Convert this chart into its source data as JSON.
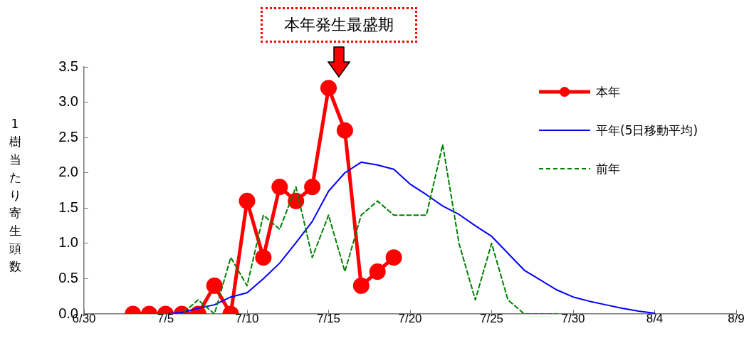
{
  "chart_data": {
    "type": "line",
    "ylabel": "1樹当たり寄生頭数",
    "annotations": [
      "本年発生最盛期"
    ],
    "xlim": [
      "--06-30",
      "--08-09"
    ],
    "xticks": [
      {
        "value": "--06-30",
        "label": "6/30"
      },
      {
        "value": "--07-05",
        "label": "7/5"
      },
      {
        "value": "--07-10",
        "label": "7/10"
      },
      {
        "value": "--07-15",
        "label": "7/15"
      },
      {
        "value": "--07-20",
        "label": "7/20"
      },
      {
        "value": "--07-25",
        "label": "7/25"
      },
      {
        "value": "--07-30",
        "label": "7/30"
      },
      {
        "value": "--08-04",
        "label": "8/4"
      },
      {
        "value": "--08-09",
        "label": "8/9"
      }
    ],
    "ylim": [
      0,
      3.5
    ],
    "yticks": [
      {
        "value": 0,
        "label": "0.0"
      },
      {
        "value": 0.5,
        "label": "0.5"
      },
      {
        "value": 1,
        "label": "1.0"
      },
      {
        "value": 1.5,
        "label": "1.5"
      },
      {
        "value": 2,
        "label": "2.0"
      },
      {
        "value": 2.5,
        "label": "2.5"
      },
      {
        "value": 3,
        "label": "3.0"
      },
      {
        "value": 3.5,
        "label": "3.5"
      }
    ],
    "grid": false,
    "legend": "top right",
    "series": [
      {
        "name": "本年",
        "color": "#ff0000",
        "marker": "circle",
        "line_style": "solid",
        "x": [
          "--07-03",
          "--07-04",
          "--07-05",
          "--07-06",
          "--07-07",
          "--07-08",
          "--07-09",
          "--07-10",
          "--07-11",
          "--07-12",
          "--07-13",
          "--07-14",
          "--07-15",
          "--07-16",
          "--07-17",
          "--07-18",
          "--07-19"
        ],
        "values": [
          0,
          0,
          0,
          0,
          0,
          0.4,
          0,
          1.6,
          0.8,
          1.8,
          1.6,
          1.8,
          3.2,
          2.6,
          0.4,
          0.6,
          0.8
        ]
      },
      {
        "name": "平年(5日移動平均)",
        "color": "#0000ff",
        "marker": "none",
        "line_style": "solid",
        "x": [
          "--07-05",
          "--07-06",
          "--07-07",
          "--07-08",
          "--07-09",
          "--07-10",
          "--07-11",
          "--07-12",
          "--07-13",
          "--07-14",
          "--07-15",
          "--07-16",
          "--07-17",
          "--07-18",
          "--07-19",
          "--07-20",
          "--07-21",
          "--07-22",
          "--07-23",
          "--07-24",
          "--07-25",
          "--07-26",
          "--07-27",
          "--07-28",
          "--07-29",
          "--07-30",
          "--07-31",
          "--08-01",
          "--08-02",
          "--08-03",
          "--08-04"
        ],
        "values": [
          0,
          0.02,
          0.08,
          0.13,
          0.24,
          0.3,
          0.5,
          0.72,
          1.01,
          1.31,
          1.74,
          2.0,
          2.15,
          2.11,
          2.05,
          1.84,
          1.69,
          1.53,
          1.41,
          1.25,
          1.1,
          0.86,
          0.62,
          0.48,
          0.34,
          0.24,
          0.18,
          0.13,
          0.08,
          0.04,
          0.01
        ]
      },
      {
        "name": "前年",
        "color": "#008000",
        "marker": "none",
        "line_style": "dashed",
        "x": [
          "--07-04",
          "--07-05",
          "--07-06",
          "--07-07",
          "--07-08",
          "--07-09",
          "--07-10",
          "--07-11",
          "--07-12",
          "--07-13",
          "--07-14",
          "--07-15",
          "--07-16",
          "--07-17",
          "--07-18",
          "--07-19",
          "--07-20",
          "--07-21",
          "--07-22",
          "--07-23",
          "--07-24",
          "--07-25",
          "--07-26",
          "--07-27",
          "--07-28",
          "--07-29"
        ],
        "values": [
          0,
          0,
          0,
          0.2,
          0,
          0.8,
          0.4,
          1.4,
          1.2,
          1.8,
          0.8,
          1.4,
          0.6,
          1.4,
          1.6,
          1.4,
          1.4,
          1.4,
          2.4,
          1.0,
          0.2,
          1.0,
          0.2,
          0,
          0,
          0
        ]
      }
    ]
  }
}
